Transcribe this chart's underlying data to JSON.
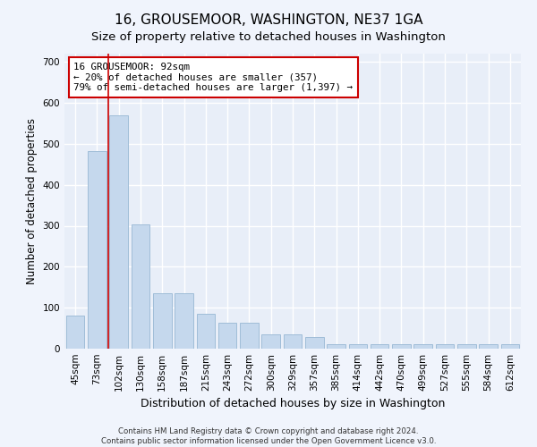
{
  "title": "16, GROUSEMOOR, WASHINGTON, NE37 1GA",
  "subtitle": "Size of property relative to detached houses in Washington",
  "xlabel": "Distribution of detached houses by size in Washington",
  "ylabel": "Number of detached properties",
  "categories": [
    "45sqm",
    "73sqm",
    "102sqm",
    "130sqm",
    "158sqm",
    "187sqm",
    "215sqm",
    "243sqm",
    "272sqm",
    "300sqm",
    "329sqm",
    "357sqm",
    "385sqm",
    "414sqm",
    "442sqm",
    "470sqm",
    "499sqm",
    "527sqm",
    "555sqm",
    "584sqm",
    "612sqm"
  ],
  "values": [
    80,
    483,
    570,
    303,
    135,
    135,
    85,
    63,
    63,
    35,
    35,
    28,
    10,
    10,
    10,
    10,
    10,
    10,
    10,
    10,
    10
  ],
  "bar_color": "#c5d8ed",
  "bar_edge_color": "#a0bdd8",
  "vline_color": "#cc0000",
  "annotation_text": "16 GROUSEMOOR: 92sqm\n← 20% of detached houses are smaller (357)\n79% of semi-detached houses are larger (1,397) →",
  "annotation_box_facecolor": "#ffffff",
  "annotation_box_edgecolor": "#cc0000",
  "ylim": [
    0,
    720
  ],
  "yticks": [
    0,
    100,
    200,
    300,
    400,
    500,
    600,
    700
  ],
  "title_fontsize": 11,
  "subtitle_fontsize": 9.5,
  "xlabel_fontsize": 9,
  "ylabel_fontsize": 8.5,
  "tick_fontsize": 7.5,
  "footer_text": "Contains HM Land Registry data © Crown copyright and database right 2024.\nContains public sector information licensed under the Open Government Licence v3.0.",
  "background_color": "#f0f4fc",
  "plot_background_color": "#e8eef8",
  "grid_color": "#ffffff"
}
